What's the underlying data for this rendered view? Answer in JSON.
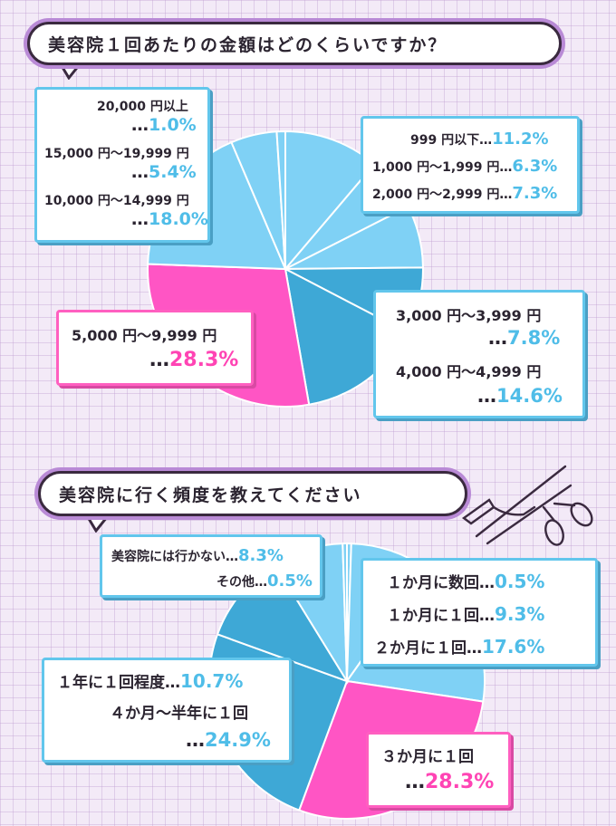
{
  "colors": {
    "pink": "#ff55c4",
    "dark_blue": "#3ea8d6",
    "light_blue": "#7fd1f5",
    "paper": "#f3eaf7"
  },
  "icons": [
    "scissors-icon"
  ],
  "chart_data": [
    {
      "type": "pie",
      "title": "美容院１回あたりの金額はどのくらいですか？",
      "dots": "…",
      "slices": [
        {
          "label": "999 円以下",
          "value": 11.2,
          "display": "11.2%"
        },
        {
          "label": "1,000 円～1,999 円",
          "value": 6.3,
          "display": "6.3%"
        },
        {
          "label": "2,000 円～2,999 円",
          "value": 7.3,
          "display": "7.3%"
        },
        {
          "label": "3,000 円～3,999 円",
          "value": 7.8,
          "display": "7.8%"
        },
        {
          "label": "4,000 円～4,999 円",
          "value": 14.6,
          "display": "14.6%"
        },
        {
          "label": "5,000 円～9,999 円",
          "value": 28.3,
          "display": "28.3%"
        },
        {
          "label": "10,000 円～14,999 円",
          "value": 18.0,
          "display": "18.0%"
        },
        {
          "label": "15,000 円～19,999 円",
          "value": 5.4,
          "display": "5.4%"
        },
        {
          "label": "20,000 円以上",
          "value": 1.0,
          "display": "1.0%"
        }
      ]
    },
    {
      "type": "pie",
      "title": "美容院に行く頻度を教えてください",
      "dots": "…",
      "slices": [
        {
          "label": "１か月に数回",
          "value": 0.5,
          "display": "0.5%"
        },
        {
          "label": "１か月に１回",
          "value": 9.3,
          "display": "9.3%"
        },
        {
          "label": "２か月に１回",
          "value": 17.6,
          "display": "17.6%"
        },
        {
          "label": "３か月に１回",
          "value": 28.3,
          "display": "28.3%"
        },
        {
          "label": "４か月～半年に１回",
          "value": 24.9,
          "display": "24.9%"
        },
        {
          "label": "１年に１回程度",
          "value": 10.7,
          "display": "10.7%"
        },
        {
          "label": "美容院には行かない",
          "value": 8.3,
          "display": "8.3%"
        },
        {
          "label": "その他",
          "value": 0.5,
          "display": "0.5%"
        }
      ]
    }
  ]
}
